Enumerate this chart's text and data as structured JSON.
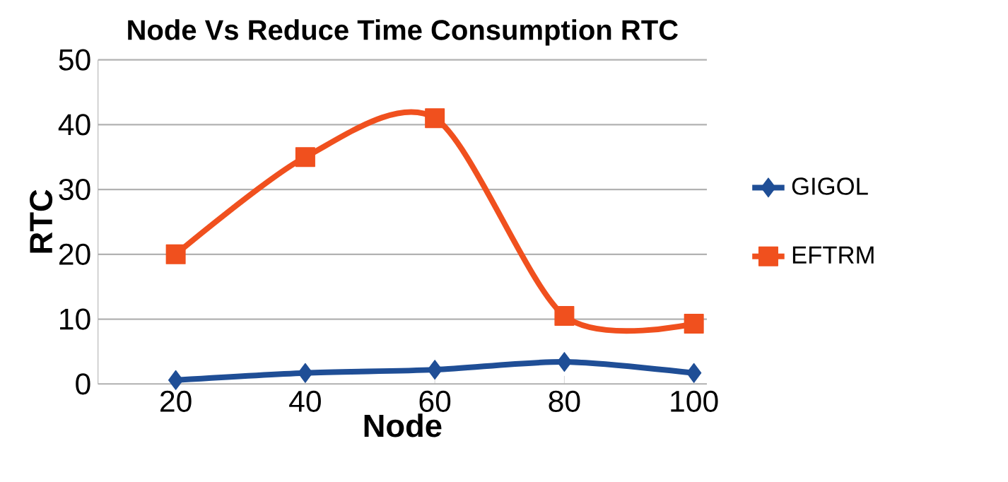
{
  "chart_data": {
    "type": "line",
    "title": "Node Vs Reduce Time Consumption RTC",
    "xlabel": "Node",
    "ylabel": "RTC",
    "categories": [
      "20",
      "40",
      "60",
      "80",
      "100"
    ],
    "series": [
      {
        "name": "GIGOL",
        "color": "#1f4e96",
        "marker": "diamond",
        "values": [
          0.6,
          1.7,
          2.2,
          3.4,
          1.7
        ]
      },
      {
        "name": "EFTRM",
        "color": "#f0501e",
        "marker": "square",
        "values": [
          20,
          35,
          41,
          10.5,
          9.3
        ]
      }
    ],
    "ylim": [
      0,
      50
    ],
    "yticks": [
      0,
      10,
      20,
      30,
      40,
      50
    ],
    "grid": "y",
    "legend": "right"
  }
}
